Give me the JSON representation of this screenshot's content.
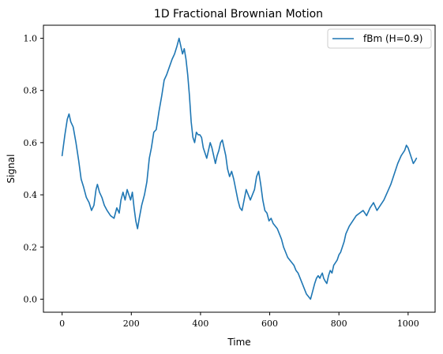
{
  "chart_data": {
    "type": "line",
    "title": "1D Fractional Brownian Motion",
    "xlabel": "Time",
    "ylabel": "Signal",
    "xlim": [
      -54,
      1078
    ],
    "ylim": [
      -0.05,
      1.05
    ],
    "xticks": [
      0,
      200,
      400,
      600,
      800,
      1000
    ],
    "xtick_labels": [
      "0",
      "200",
      "400",
      "600",
      "800",
      "1000"
    ],
    "yticks": [
      0.0,
      0.2,
      0.4,
      0.6,
      0.8,
      1.0
    ],
    "ytick_labels": [
      "0.0",
      "0.2",
      "0.4",
      "0.6",
      "0.8",
      "1.0"
    ],
    "grid": false,
    "legend_position": "top-right",
    "series": [
      {
        "name": "fBm (H=0.9)",
        "color": "#1f77b4",
        "x": [
          0,
          8,
          15,
          20,
          25,
          32,
          40,
          48,
          55,
          62,
          70,
          78,
          85,
          92,
          98,
          102,
          108,
          115,
          122,
          130,
          140,
          150,
          158,
          165,
          170,
          176,
          182,
          188,
          193,
          198,
          203,
          208,
          213,
          218,
          223,
          230,
          238,
          245,
          252,
          258,
          265,
          272,
          280,
          288,
          295,
          302,
          310,
          318,
          325,
          332,
          338,
          343,
          348,
          353,
          358,
          363,
          368,
          373,
          378,
          383,
          388,
          393,
          398,
          403,
          408,
          413,
          418,
          423,
          428,
          433,
          438,
          443,
          448,
          453,
          458,
          463,
          468,
          473,
          478,
          484,
          490,
          496,
          502,
          508,
          514,
          520,
          526,
          532,
          538,
          544,
          550,
          556,
          562,
          568,
          574,
          580,
          586,
          592,
          598,
          604,
          610,
          616,
          622,
          628,
          634,
          640,
          646,
          652,
          658,
          664,
          670,
          676,
          682,
          688,
          694,
          700,
          706,
          712,
          718,
          724,
          730,
          735,
          740,
          745,
          748,
          752,
          756,
          760,
          765,
          770,
          775,
          780,
          785,
          790,
          795,
          800,
          805,
          810,
          815,
          820,
          830,
          840,
          850,
          860,
          870,
          880,
          890,
          900,
          910,
          920,
          930,
          940,
          950,
          960,
          970,
          980,
          990,
          995,
          1000,
          1005,
          1010,
          1015,
          1020,
          1024
        ],
        "values": [
          0.55,
          0.63,
          0.69,
          0.71,
          0.68,
          0.66,
          0.6,
          0.53,
          0.46,
          0.43,
          0.39,
          0.37,
          0.34,
          0.36,
          0.42,
          0.44,
          0.41,
          0.39,
          0.36,
          0.34,
          0.32,
          0.31,
          0.35,
          0.33,
          0.38,
          0.41,
          0.38,
          0.42,
          0.4,
          0.38,
          0.41,
          0.35,
          0.3,
          0.27,
          0.31,
          0.36,
          0.4,
          0.45,
          0.54,
          0.58,
          0.64,
          0.65,
          0.72,
          0.78,
          0.84,
          0.86,
          0.89,
          0.92,
          0.94,
          0.97,
          1.0,
          0.97,
          0.94,
          0.96,
          0.92,
          0.86,
          0.78,
          0.68,
          0.62,
          0.6,
          0.64,
          0.63,
          0.63,
          0.62,
          0.58,
          0.56,
          0.54,
          0.57,
          0.6,
          0.58,
          0.55,
          0.52,
          0.55,
          0.57,
          0.6,
          0.61,
          0.58,
          0.55,
          0.5,
          0.47,
          0.49,
          0.46,
          0.42,
          0.38,
          0.35,
          0.34,
          0.38,
          0.42,
          0.4,
          0.38,
          0.4,
          0.42,
          0.47,
          0.49,
          0.44,
          0.38,
          0.34,
          0.33,
          0.3,
          0.31,
          0.29,
          0.28,
          0.27,
          0.25,
          0.23,
          0.2,
          0.18,
          0.16,
          0.15,
          0.14,
          0.13,
          0.11,
          0.1,
          0.08,
          0.06,
          0.04,
          0.02,
          0.01,
          0.0,
          0.03,
          0.06,
          0.08,
          0.09,
          0.08,
          0.09,
          0.1,
          0.08,
          0.07,
          0.06,
          0.09,
          0.11,
          0.1,
          0.13,
          0.14,
          0.15,
          0.17,
          0.18,
          0.2,
          0.22,
          0.25,
          0.28,
          0.3,
          0.32,
          0.33,
          0.34,
          0.32,
          0.35,
          0.37,
          0.34,
          0.36,
          0.38,
          0.41,
          0.44,
          0.48,
          0.52,
          0.55,
          0.57,
          0.59,
          0.58,
          0.56,
          0.54,
          0.52,
          0.53,
          0.54
        ]
      }
    ]
  }
}
